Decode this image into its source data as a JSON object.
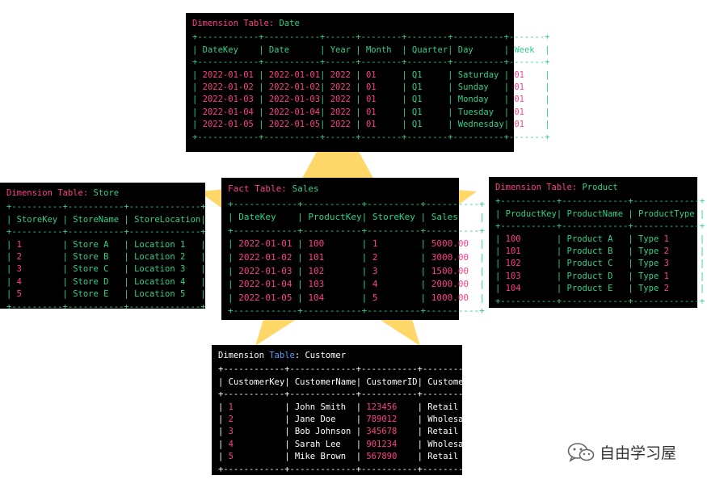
{
  "tables": {
    "date": {
      "title_prefix": "Dimension Table:",
      "title_name": "Date",
      "columns": [
        "DateKey",
        "Date",
        "Year",
        "Month",
        "Quarter",
        "Day",
        "Week"
      ],
      "rows": [
        [
          "2022-01-01",
          "2022-01-01",
          "2022",
          "01",
          "Q1",
          "Saturday",
          "01"
        ],
        [
          "2022-01-02",
          "2022-01-02",
          "2022",
          "01",
          "Q1",
          "Sunday",
          "01"
        ],
        [
          "2022-01-03",
          "2022-01-03",
          "2022",
          "01",
          "Q1",
          "Monday",
          "01"
        ],
        [
          "2022-01-04",
          "2022-01-04",
          "2022",
          "01",
          "Q1",
          "Tuesday",
          "01"
        ],
        [
          "2022-01-05",
          "2022-01-05",
          "2022",
          "01",
          "Q1",
          "Wednesday",
          "01"
        ]
      ]
    },
    "store": {
      "title_prefix": "Dimension Table:",
      "title_name": "Store",
      "columns": [
        "StoreKey",
        "StoreName",
        "StoreLocation"
      ],
      "rows": [
        [
          "1",
          "Store A",
          "Location 1"
        ],
        [
          "2",
          "Store B",
          "Location 2"
        ],
        [
          "3",
          "Store C",
          "Location 3"
        ],
        [
          "4",
          "Store D",
          "Location 4"
        ],
        [
          "5",
          "Store E",
          "Location 5"
        ]
      ]
    },
    "sales": {
      "title_prefix": "Fact Table:",
      "title_name": "Sales",
      "columns": [
        "DateKey",
        "ProductKey",
        "StoreKey",
        "Sales"
      ],
      "rows": [
        [
          "2022-01-01",
          "100",
          "1",
          "5000.00"
        ],
        [
          "2022-01-02",
          "101",
          "2",
          "3000.00"
        ],
        [
          "2022-01-03",
          "102",
          "3",
          "1500.00"
        ],
        [
          "2022-01-04",
          "103",
          "4",
          "2000.00"
        ],
        [
          "2022-01-05",
          "104",
          "5",
          "1000.00"
        ]
      ]
    },
    "product": {
      "title_prefix": "Dimension Table:",
      "title_name": "Product",
      "columns": [
        "ProductKey",
        "ProductName",
        "ProductType"
      ],
      "rows": [
        [
          "100",
          "Product A",
          "Type 1"
        ],
        [
          "101",
          "Product B",
          "Type 2"
        ],
        [
          "102",
          "Product C",
          "Type 3"
        ],
        [
          "103",
          "Product D",
          "Type 1"
        ],
        [
          "104",
          "Product E",
          "Type 2"
        ]
      ]
    },
    "customer": {
      "title_word1": "Dimension",
      "title_word2": "Table",
      "title_rest": ": Customer",
      "columns": [
        "CustomerKey",
        "CustomerName",
        "CustomerID",
        "CustomerType"
      ],
      "rows": [
        [
          "1",
          "John Smith",
          "123456",
          "Retail"
        ],
        [
          "2",
          "Jane Doe",
          "789012",
          "Wholesale"
        ],
        [
          "3",
          "Bob Johnson",
          "345678",
          "Retail"
        ],
        [
          "4",
          "Sarah Lee",
          "901234",
          "Wholesale"
        ],
        [
          "5",
          "Mike Brown",
          "567890",
          "Retail"
        ]
      ]
    }
  },
  "watermark": {
    "text": "自由学习屋",
    "icon": "wechat-icon"
  },
  "colors": {
    "star": "#fdd868",
    "terminal_bg": "#000000",
    "green": "#2fd08a",
    "magenta": "#ff3f86",
    "white": "#ffffff",
    "blue": "#4ea4ff"
  }
}
